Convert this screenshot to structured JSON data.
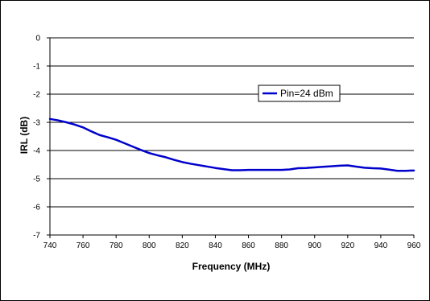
{
  "chart_data": {
    "type": "line",
    "title": "",
    "xlabel": "Frequency (MHz)",
    "ylabel": "IRL (dB)",
    "xlim": [
      740,
      960
    ],
    "ylim": [
      -7,
      0
    ],
    "x_ticks": [
      740,
      760,
      780,
      800,
      820,
      840,
      860,
      880,
      900,
      920,
      940,
      960
    ],
    "x_tick_labels": [
      "740",
      "760",
      "780",
      "800",
      "820",
      "840",
      "860",
      "880",
      "900",
      "920",
      "940",
      "960"
    ],
    "y_ticks": [
      0,
      -1,
      -2,
      -3,
      -4,
      -5,
      -6,
      -7
    ],
    "y_tick_labels": [
      "0",
      "-1",
      "-2",
      "-3",
      "-4",
      "-5",
      "-6",
      "-7"
    ],
    "grid": "horizontal",
    "legend_position": "top-right",
    "series": [
      {
        "name": "Pin=24 dBm",
        "color": "#0000cc",
        "x": [
          740,
          745,
          750,
          755,
          760,
          765,
          770,
          775,
          780,
          785,
          790,
          795,
          800,
          805,
          810,
          815,
          820,
          825,
          830,
          835,
          840,
          845,
          850,
          855,
          860,
          865,
          870,
          875,
          880,
          885,
          890,
          895,
          900,
          905,
          910,
          915,
          920,
          925,
          930,
          935,
          940,
          945,
          950,
          955,
          960
        ],
        "y": [
          -2.88,
          -2.93,
          -3.0,
          -3.08,
          -3.18,
          -3.32,
          -3.45,
          -3.53,
          -3.62,
          -3.74,
          -3.86,
          -3.98,
          -4.09,
          -4.17,
          -4.24,
          -4.33,
          -4.41,
          -4.47,
          -4.52,
          -4.57,
          -4.62,
          -4.66,
          -4.7,
          -4.7,
          -4.69,
          -4.69,
          -4.69,
          -4.69,
          -4.69,
          -4.67,
          -4.63,
          -4.62,
          -4.6,
          -4.58,
          -4.56,
          -4.54,
          -4.53,
          -4.57,
          -4.61,
          -4.63,
          -4.64,
          -4.68,
          -4.72,
          -4.72,
          -4.71
        ]
      }
    ]
  }
}
